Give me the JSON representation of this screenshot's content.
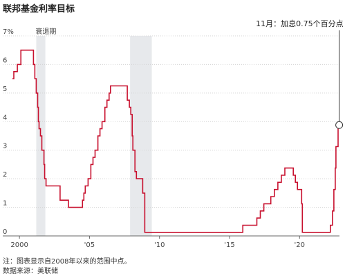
{
  "title": "联邦基金利率目标",
  "notes": {
    "note": "注：图表显示自2008年以来的范围中点。",
    "source": "数据来源：美联储"
  },
  "chart_data": {
    "type": "line",
    "title": "联邦基金利率目标",
    "xlabel": "",
    "ylabel": "",
    "xlim": [
      1999.5,
      2022.85
    ],
    "ylim": [
      0,
      7
    ],
    "y_ticks": [
      {
        "value": 0,
        "label": "0"
      },
      {
        "value": 1,
        "label": "1"
      },
      {
        "value": 2,
        "label": "2"
      },
      {
        "value": 3,
        "label": "3"
      },
      {
        "value": 4,
        "label": "4"
      },
      {
        "value": 5,
        "label": "5"
      },
      {
        "value": 6,
        "label": "6"
      },
      {
        "value": 7,
        "label": "7%"
      }
    ],
    "x_ticks": [
      {
        "value": 2000,
        "label": "2000"
      },
      {
        "value": 2005,
        "label": "'05"
      },
      {
        "value": 2010,
        "label": "'10"
      },
      {
        "value": 2015,
        "label": "'15"
      },
      {
        "value": 2020,
        "label": "'20"
      }
    ],
    "recessions": [
      {
        "start": 2001.2,
        "end": 2001.85,
        "label": "衰退期"
      },
      {
        "start": 2007.9,
        "end": 2009.45,
        "label": ""
      }
    ],
    "annotation": {
      "x": 2022.83,
      "y": 3.88,
      "text": "11月：加息0.75个百分点"
    },
    "series": [
      {
        "name": "",
        "color": "#c8102e",
        "x": [
          1999.5,
          1999.6,
          1999.85,
          2000.1,
          2000.4,
          2001.0,
          2001.1,
          2001.2,
          2001.3,
          2001.35,
          2001.4,
          2001.5,
          2001.6,
          2001.75,
          2001.8,
          2001.9,
          2002.9,
          2003.5,
          2004.5,
          2004.6,
          2004.7,
          2004.9,
          2005.1,
          2005.25,
          2005.4,
          2005.6,
          2005.75,
          2005.9,
          2006.1,
          2006.25,
          2006.4,
          2006.5,
          2007.7,
          2007.85,
          2007.95,
          2008.05,
          2008.1,
          2008.25,
          2008.35,
          2008.8,
          2008.95,
          2015.95,
          2016.95,
          2017.2,
          2017.45,
          2017.95,
          2018.2,
          2018.45,
          2018.7,
          2018.95,
          2019.55,
          2019.7,
          2019.85,
          2020.15,
          2020.2,
          2022.2,
          2022.35,
          2022.45,
          2022.55,
          2022.6,
          2022.75,
          2022.83
        ],
        "values": [
          5.5,
          5.75,
          6.0,
          6.5,
          6.5,
          6.0,
          5.5,
          5.0,
          4.5,
          4.0,
          3.75,
          3.5,
          3.0,
          2.5,
          2.0,
          1.75,
          1.25,
          1.0,
          1.25,
          1.5,
          1.75,
          2.0,
          2.5,
          2.75,
          3.0,
          3.5,
          3.75,
          4.0,
          4.5,
          4.75,
          5.0,
          5.25,
          4.75,
          4.5,
          4.25,
          3.5,
          3.0,
          2.25,
          2.0,
          1.5,
          0.125,
          0.375,
          0.625,
          0.875,
          1.125,
          1.375,
          1.625,
          1.875,
          2.125,
          2.375,
          2.125,
          1.875,
          1.625,
          1.125,
          0.125,
          0.375,
          0.875,
          1.625,
          2.375,
          3.125,
          3.875,
          3.875
        ]
      }
    ]
  }
}
